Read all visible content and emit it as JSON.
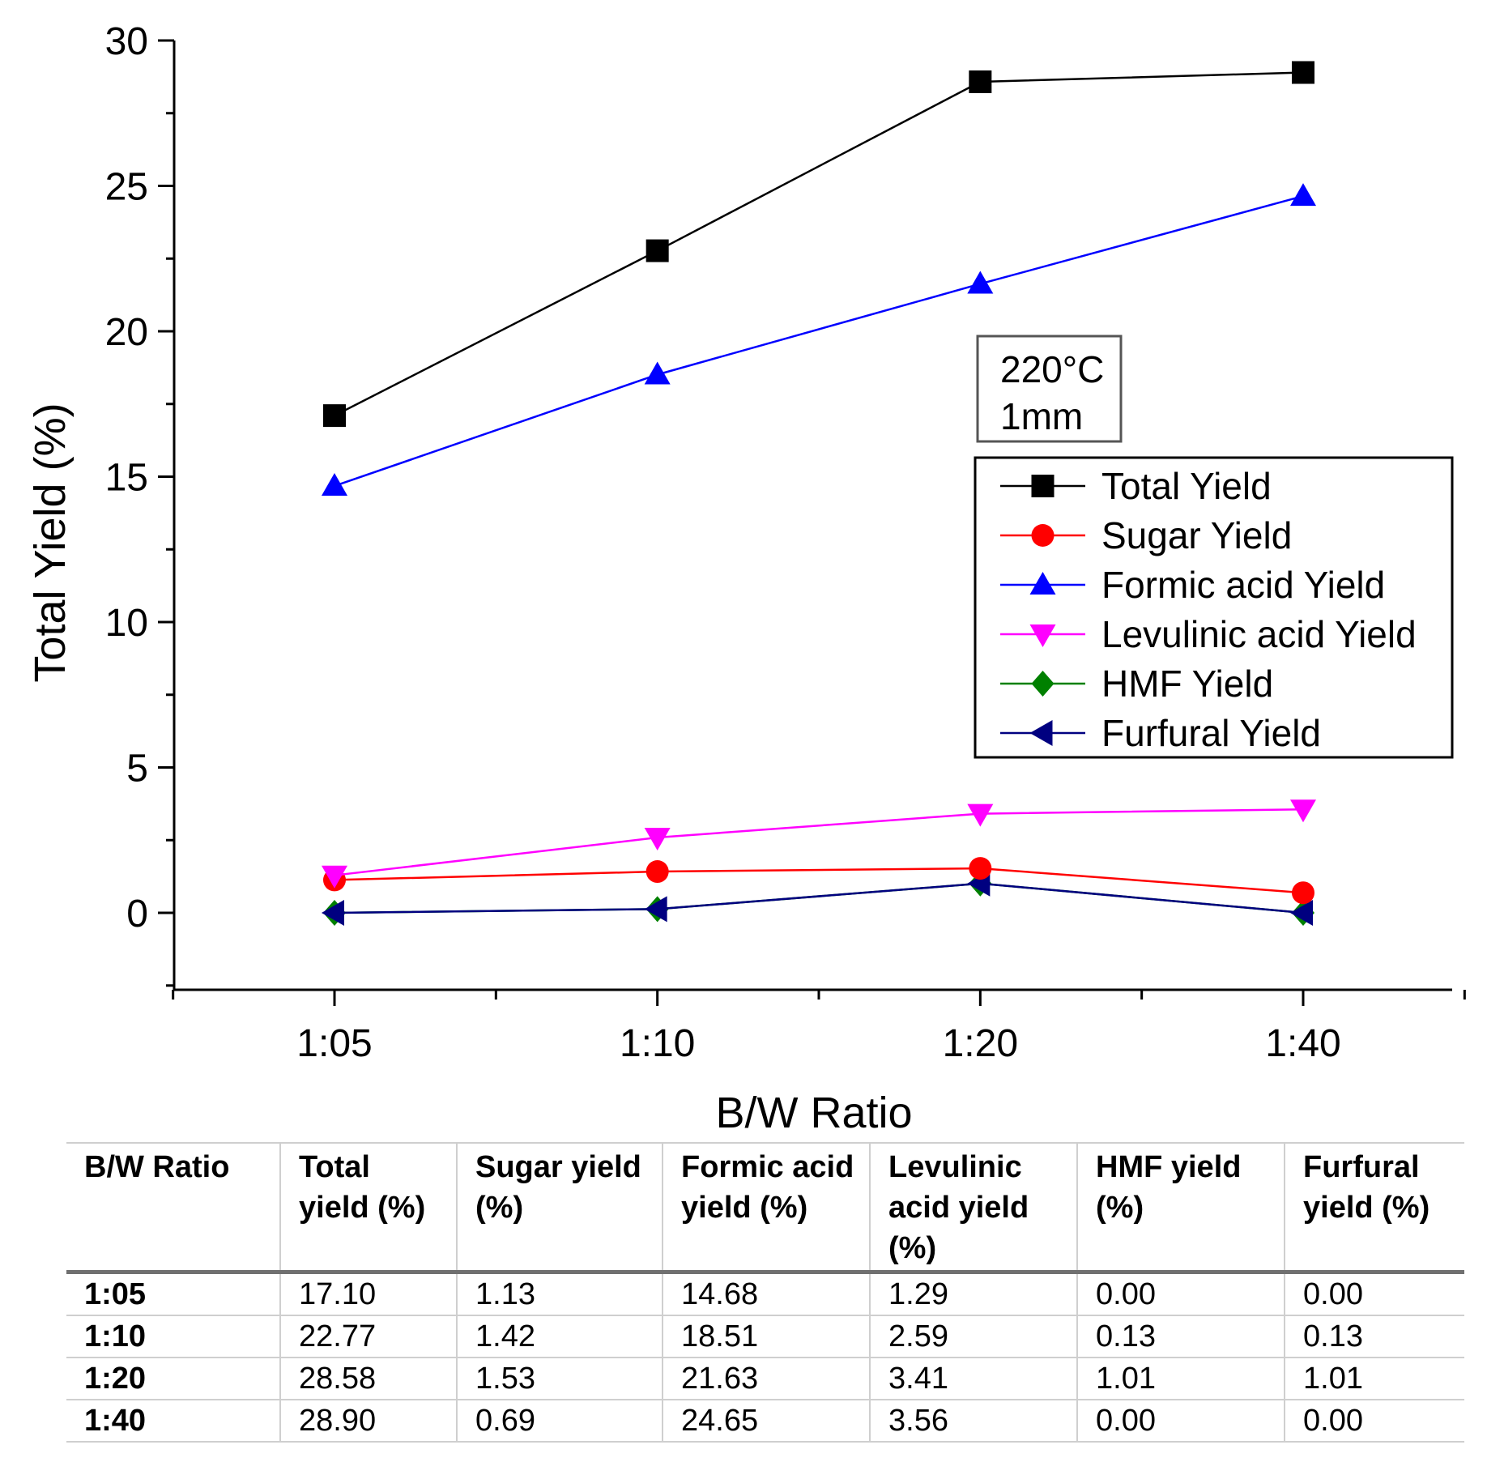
{
  "chart_data": {
    "type": "line",
    "categories": [
      "1:05",
      "1:10",
      "1:20",
      "1:40"
    ],
    "xlabel": "B/W Ratio",
    "ylabel": "Total Yield (%)",
    "ylim": [
      -2.5,
      30
    ],
    "yticks": [
      0,
      5,
      10,
      15,
      20,
      25,
      30
    ],
    "legend_position": "right",
    "condition_box": [
      "220°C",
      "1mm"
    ],
    "series": [
      {
        "name": "Total Yield",
        "color": "#000000",
        "marker": "square",
        "values": [
          17.1,
          22.77,
          28.58,
          28.9
        ]
      },
      {
        "name": "Sugar Yield",
        "color": "#ff0000",
        "marker": "circle",
        "values": [
          1.13,
          1.42,
          1.53,
          0.69
        ]
      },
      {
        "name": "Formic acid Yield",
        "color": "#0000ff",
        "marker": "triangle-up",
        "values": [
          14.68,
          18.51,
          21.63,
          24.65
        ]
      },
      {
        "name": "Levulinic acid Yield",
        "color": "#ff00ff",
        "marker": "triangle-down",
        "values": [
          1.29,
          2.59,
          3.41,
          3.56
        ]
      },
      {
        "name": "HMF Yield",
        "color": "#008000",
        "marker": "diamond",
        "values": [
          0.0,
          0.13,
          1.01,
          0.0
        ]
      },
      {
        "name": "Furfural Yield",
        "color": "#000080",
        "marker": "triangle-left",
        "values": [
          0.0,
          0.13,
          1.01,
          0.0
        ]
      }
    ]
  },
  "table": {
    "headers": [
      "B/W Ratio",
      "Total yield (%)",
      "Sugar yield (%)",
      "Formic acid yield (%)",
      "Levulinic acid yield (%)",
      "HMF yield (%)",
      "Furfural yield (%)"
    ],
    "rows": [
      [
        "1:05",
        "17.10",
        "1.13",
        "14.68",
        "1.29",
        "0.00",
        "0.00"
      ],
      [
        "1:10",
        "22.77",
        "1.42",
        "18.51",
        "2.59",
        "0.13",
        "0.13"
      ],
      [
        "1:20",
        "28.58",
        "1.53",
        "21.63",
        "3.41",
        "1.01",
        "1.01"
      ],
      [
        "1:40",
        "28.90",
        "0.69",
        "24.65",
        "3.56",
        "0.00",
        "0.00"
      ]
    ]
  }
}
